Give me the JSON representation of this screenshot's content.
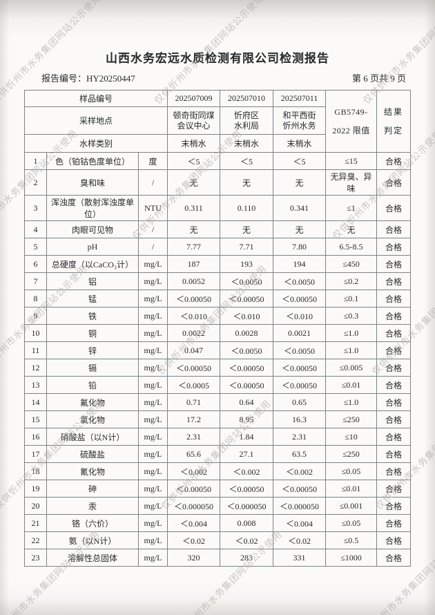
{
  "watermark": {
    "text": "仅供忻州市水务集团网站公示使用"
  },
  "header": {
    "title": "山西水务宏远水质检测有限公司检测报告",
    "report_no_label": "报告编号：",
    "report_no": "HY20250447",
    "page_label": "第 6 页共 9 页"
  },
  "table": {
    "meta_rows": [
      {
        "label": "样品编号",
        "values": [
          "202507009",
          "202507010",
          "202507011"
        ]
      },
      {
        "label": "采样地点",
        "values": [
          "顿奇街同煤\n会议中心",
          "忻府区\n水利局",
          "和平西街\n忻州水务"
        ]
      },
      {
        "label": "水样类别",
        "values": [
          "末梢水",
          "末梢水",
          "末梢水"
        ]
      }
    ],
    "limit_header": "GB5749-\n2022 限值",
    "result_header": "结果\n判定",
    "rows": [
      {
        "no": "1",
        "name": "色（铂钴色度单位）",
        "unit": "度",
        "v1": "＜5",
        "v2": "＜5",
        "v3": "＜5",
        "limit": "≤15",
        "result": "合格"
      },
      {
        "no": "2",
        "name": "臭和味",
        "unit": "/",
        "v1": "无",
        "v2": "无",
        "v3": "无",
        "limit": "无异臭、异味",
        "result": "合格"
      },
      {
        "no": "3",
        "name": "浑浊度（散射浑浊度单位）",
        "unit": "NTU",
        "v1": "0.311",
        "v2": "0.110",
        "v3": "0.341",
        "limit": "≤1",
        "result": "合格"
      },
      {
        "no": "4",
        "name": "肉眼可见物",
        "unit": "/",
        "v1": "无",
        "v2": "无",
        "v3": "无",
        "limit": "无",
        "result": "合格"
      },
      {
        "no": "5",
        "name": "pH",
        "unit": "/",
        "v1": "7.77",
        "v2": "7.71",
        "v3": "7.80",
        "limit": "6.5-8.5",
        "result": "合格"
      },
      {
        "no": "6",
        "name": "总硬度（以CaCO₃计）",
        "unit": "mg/L",
        "v1": "187",
        "v2": "193",
        "v3": "194",
        "limit": "≤450",
        "result": "合格"
      },
      {
        "no": "7",
        "name": "铝",
        "unit": "mg/L",
        "v1": "0.0052",
        "v2": "＜0.0050",
        "v3": "＜0.0050",
        "limit": "≤0.2",
        "result": "合格"
      },
      {
        "no": "8",
        "name": "锰",
        "unit": "mg/L",
        "v1": "＜0.00050",
        "v2": "＜0.00050",
        "v3": "＜0.00050",
        "limit": "≤0.1",
        "result": "合格"
      },
      {
        "no": "9",
        "name": "铁",
        "unit": "mg/L",
        "v1": "＜0.010",
        "v2": "＜0.010",
        "v3": "＜0.010",
        "limit": "≤0.3",
        "result": "合格"
      },
      {
        "no": "10",
        "name": "铜",
        "unit": "mg/L",
        "v1": "0.0022",
        "v2": "0.0028",
        "v3": "0.0021",
        "limit": "≤1.0",
        "result": "合格"
      },
      {
        "no": "11",
        "name": "锌",
        "unit": "mg/L",
        "v1": "0.047",
        "v2": "＜0.0050",
        "v3": "＜0.0050",
        "limit": "≤1.0",
        "result": "合格"
      },
      {
        "no": "12",
        "name": "镉",
        "unit": "mg/L",
        "v1": "＜0.00050",
        "v2": "＜0.00050",
        "v3": "＜0.00050",
        "limit": "≤0.005",
        "result": "合格"
      },
      {
        "no": "13",
        "name": "铅",
        "unit": "mg/L",
        "v1": "＜0.0005",
        "v2": "＜0.00050",
        "v3": "＜0.00050",
        "limit": "≤0.01",
        "result": "合格"
      },
      {
        "no": "14",
        "name": "氟化物",
        "unit": "mg/L",
        "v1": "0.71",
        "v2": "0.64",
        "v3": "0.65",
        "limit": "≤1.0",
        "result": "合格"
      },
      {
        "no": "15",
        "name": "氯化物",
        "unit": "mg/L",
        "v1": "17.2",
        "v2": "8.95",
        "v3": "16.3",
        "limit": "≤250",
        "result": "合格"
      },
      {
        "no": "16",
        "name": "硝酸盐（以N计）",
        "unit": "mg/L",
        "v1": "2.31",
        "v2": "1.84",
        "v3": "2.31",
        "limit": "≤10",
        "result": "合格"
      },
      {
        "no": "17",
        "name": "硫酸盐",
        "unit": "mg/L",
        "v1": "65.6",
        "v2": "27.1",
        "v3": "63.5",
        "limit": "≤250",
        "result": "合格"
      },
      {
        "no": "18",
        "name": "氰化物",
        "unit": "mg/L",
        "v1": "＜0.002",
        "v2": "＜0.002",
        "v3": "＜0.002",
        "limit": "≤0.05",
        "result": "合格"
      },
      {
        "no": "19",
        "name": "砷",
        "unit": "mg/L",
        "v1": "＜0.00050",
        "v2": "＜0.00050",
        "v3": "＜0.00050",
        "limit": "≤0.01",
        "result": "合格"
      },
      {
        "no": "20",
        "name": "汞",
        "unit": "mg/L",
        "v1": "＜0.000050",
        "v2": "＜0.000050",
        "v3": "＜0.000050",
        "limit": "≤0.001",
        "result": "合格"
      },
      {
        "no": "21",
        "name": "铬（六价）",
        "unit": "mg/L",
        "v1": "＜0.004",
        "v2": "0.008",
        "v3": "＜0.004",
        "limit": "≤0.05",
        "result": "合格"
      },
      {
        "no": "22",
        "name": "氨（以N计）",
        "unit": "mg/L",
        "v1": "＜0.02",
        "v2": "＜0.02",
        "v3": "＜0.02",
        "limit": "≤0.5",
        "result": "合格"
      },
      {
        "no": "23",
        "name": "溶解性总固体",
        "unit": "mg/L",
        "v1": "320",
        "v2": "283",
        "v3": "331",
        "limit": "≤1000",
        "result": "合格"
      }
    ]
  }
}
